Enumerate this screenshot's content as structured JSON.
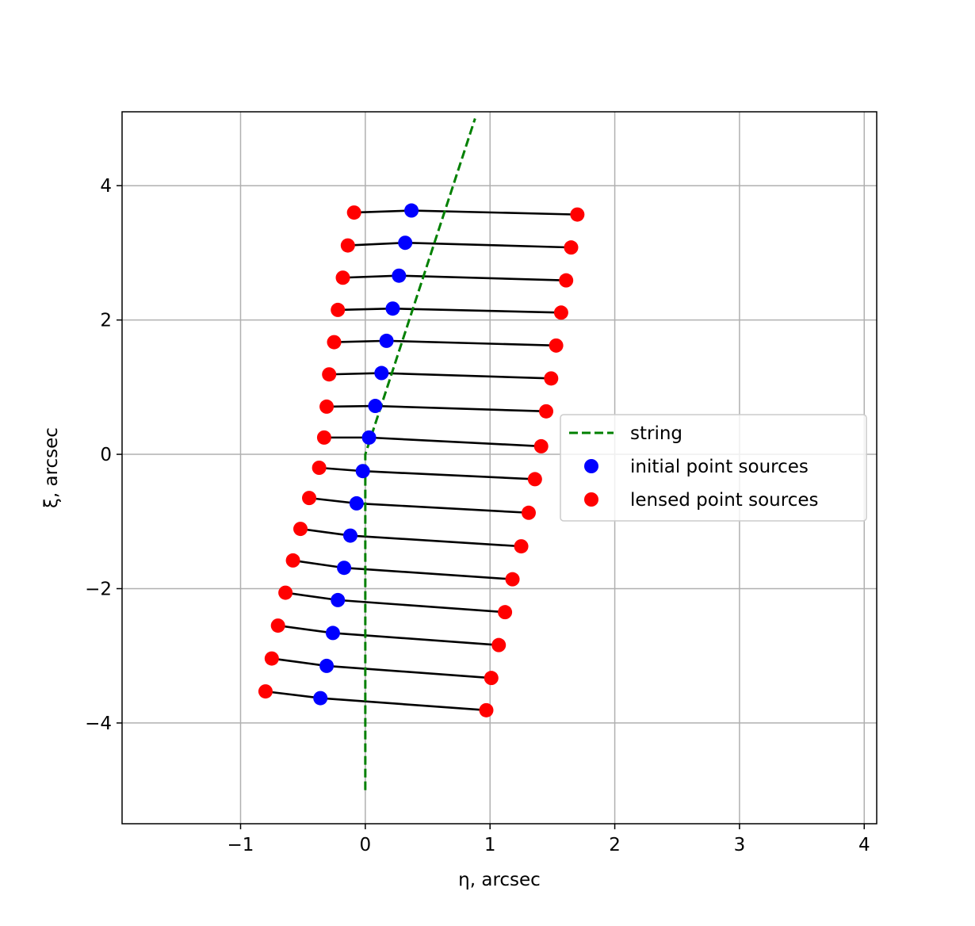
{
  "chart_data": {
    "type": "scatter",
    "xlabel": "η, arcsec",
    "ylabel": "ξ, arcsec",
    "xlim": [
      -1.95,
      4.1
    ],
    "ylim": [
      -5.5,
      5.1
    ],
    "x_ticks": [
      -1,
      0,
      1,
      2,
      3,
      4
    ],
    "x_tick_labels": [
      "−1",
      "0",
      "1",
      "2",
      "3",
      "4"
    ],
    "y_ticks": [
      -4,
      -2,
      0,
      2,
      4
    ],
    "y_tick_labels": [
      "−4",
      "−2",
      "0",
      "2",
      "4"
    ],
    "grid": true,
    "legend_position": "center-right",
    "series": [
      {
        "name": "string",
        "kind": "line",
        "style": "dashed",
        "color": "#008000",
        "x": [
          0.0,
          0.0,
          0.88
        ],
        "y": [
          -5.0,
          0.0,
          5.0
        ]
      },
      {
        "name": "initial point sources",
        "kind": "points",
        "color": "#0000ff",
        "x": [
          0.37,
          0.32,
          0.27,
          0.22,
          0.17,
          0.13,
          0.08,
          0.03,
          -0.02,
          -0.07,
          -0.12,
          -0.17,
          -0.22,
          -0.26,
          -0.31,
          -0.36
        ],
        "y": [
          3.63,
          3.15,
          2.66,
          2.17,
          1.69,
          1.21,
          0.72,
          0.25,
          -0.25,
          -0.73,
          -1.21,
          -1.69,
          -2.17,
          -2.66,
          -3.15,
          -3.63
        ]
      },
      {
        "name": "lensed point sources",
        "kind": "points",
        "color": "#ff0000",
        "x": [
          -0.09,
          -0.14,
          -0.18,
          -0.22,
          -0.25,
          -0.29,
          -0.31,
          -0.33,
          -0.37,
          -0.45,
          -0.52,
          -0.58,
          -0.64,
          -0.7,
          -0.75,
          -0.8,
          1.7,
          1.65,
          1.61,
          1.57,
          1.53,
          1.49,
          1.45,
          1.41,
          1.36,
          1.31,
          1.25,
          1.18,
          1.12,
          1.07,
          1.01,
          0.97
        ],
        "y": [
          3.6,
          3.11,
          2.63,
          2.15,
          1.67,
          1.19,
          0.71,
          0.25,
          -0.2,
          -0.65,
          -1.11,
          -1.58,
          -2.06,
          -2.55,
          -3.04,
          -3.53,
          3.57,
          3.08,
          2.59,
          2.11,
          1.62,
          1.13,
          0.64,
          0.12,
          -0.37,
          -0.87,
          -1.37,
          -1.86,
          -2.35,
          -2.84,
          -3.33,
          -3.81
        ]
      }
    ],
    "connectors": {
      "color": "#000000",
      "initial_index_pairs_note": "",
      "pairs": [
        [
          0,
          0,
          16
        ],
        [
          1,
          1,
          17
        ],
        [
          2,
          2,
          18
        ],
        [
          3,
          3,
          19
        ],
        [
          4,
          4,
          20
        ],
        [
          5,
          5,
          21
        ],
        [
          6,
          6,
          22
        ],
        [
          7,
          7,
          23
        ],
        [
          8,
          8,
          24
        ],
        [
          9,
          9,
          25
        ],
        [
          10,
          10,
          26
        ],
        [
          11,
          11,
          27
        ],
        [
          12,
          12,
          28
        ],
        [
          13,
          13,
          29
        ],
        [
          14,
          14,
          30
        ],
        [
          15,
          15,
          31
        ]
      ]
    }
  },
  "legend": {
    "items": [
      "string",
      "initial point sources",
      "lensed point sources"
    ]
  }
}
